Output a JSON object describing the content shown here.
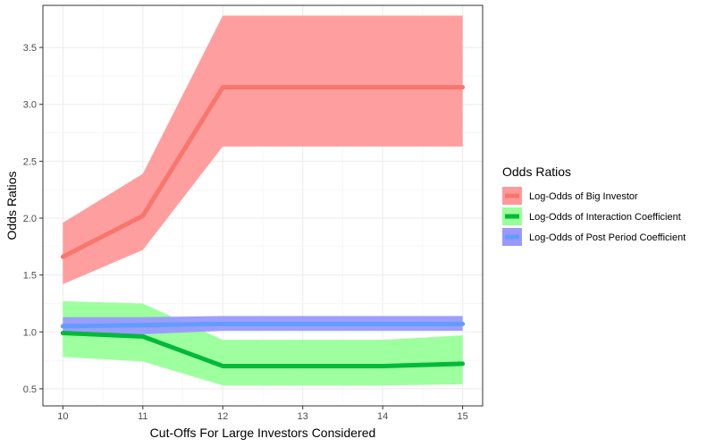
{
  "chart_data": {
    "type": "line",
    "xlabel": "Cut-Offs For Large Investors Considered",
    "ylabel": "Odds Ratios",
    "x": [
      10,
      11,
      12,
      13,
      14,
      15
    ],
    "x_ticks": [
      "10",
      "11",
      "12",
      "13",
      "14",
      "15"
    ],
    "y_ticks": [
      "0.5",
      "1.0",
      "1.5",
      "2.0",
      "2.5",
      "3.0",
      "3.5"
    ],
    "xlim": [
      9.75,
      15.25
    ],
    "ylim": [
      0.35,
      3.87
    ],
    "grid": true,
    "legend_title": "Odds Ratios",
    "legend_position": "right",
    "series": [
      {
        "name": "Log-Odds of Big Investor",
        "color": "#F8766D",
        "band_color": "#FF9999",
        "values": [
          1.66,
          2.02,
          3.15,
          3.15,
          3.15,
          3.15
        ],
        "lower": [
          1.42,
          1.72,
          2.63,
          2.63,
          2.63,
          2.63
        ],
        "upper": [
          1.96,
          2.39,
          3.78,
          3.78,
          3.78,
          3.78
        ]
      },
      {
        "name": "Log-Odds of Interaction Coefficient",
        "color": "#00BA38",
        "band_color": "#99FF99",
        "values": [
          0.99,
          0.96,
          0.7,
          0.7,
          0.7,
          0.72
        ],
        "lower": [
          0.78,
          0.74,
          0.53,
          0.53,
          0.53,
          0.54
        ],
        "upper": [
          1.27,
          1.25,
          0.93,
          0.93,
          0.93,
          0.97
        ]
      },
      {
        "name": "Log-Odds of Post Period Coefficient",
        "color": "#619CFF",
        "band_color": "#9999FF",
        "values": [
          1.05,
          1.06,
          1.07,
          1.07,
          1.07,
          1.07
        ],
        "lower": [
          0.98,
          0.98,
          1.01,
          1.01,
          1.01,
          1.01
        ],
        "upper": [
          1.13,
          1.13,
          1.14,
          1.14,
          1.14,
          1.14
        ]
      }
    ]
  }
}
